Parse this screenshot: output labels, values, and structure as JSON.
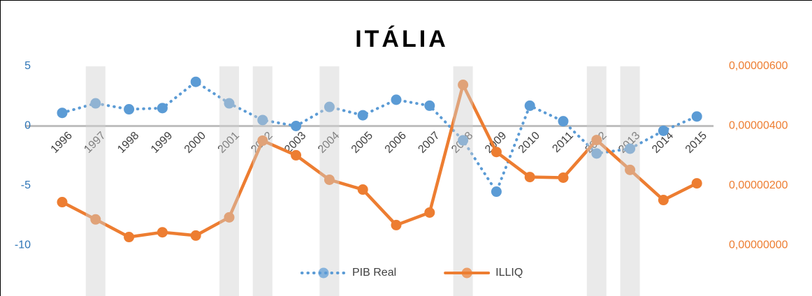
{
  "chart_data": {
    "type": "line",
    "title": "ITÁLIA",
    "categories": [
      "1996",
      "1997",
      "1998",
      "1999",
      "2000",
      "2001",
      "2002",
      "2003",
      "2004",
      "2005",
      "2006",
      "2007",
      "2008",
      "2009",
      "2010",
      "2011",
      "2012",
      "2013",
      "2014",
      "2015"
    ],
    "series": [
      {
        "name": "PIB Real",
        "color": "#5b9bd5",
        "dashed": true,
        "values": [
          1.1,
          1.9,
          1.4,
          1.5,
          3.7,
          1.9,
          0.5,
          0.0,
          1.6,
          0.9,
          2.2,
          1.7,
          -1.2,
          -5.5,
          1.7,
          0.4,
          -2.3,
          -1.9,
          -0.4,
          0.8
        ]
      },
      {
        "name": "ILLIQ",
        "color": "#ed7d31",
        "axis": "y2",
        "dashed": false,
        "values": [
          1.45e-06,
          8.7e-07,
          2.8e-07,
          4.4e-07,
          3.3e-07,
          9.4e-07,
          3.51e-06,
          3.02e-06,
          2.2e-06,
          1.87e-06,
          6.8e-07,
          1.1e-06,
          5.38e-06,
          3.13e-06,
          2.29e-06,
          2.27e-06,
          3.53e-06,
          2.53e-06,
          1.52e-06,
          2.08e-06
        ]
      }
    ],
    "highlight_categories": [
      "1997",
      "2001",
      "2002",
      "2004",
      "2008",
      "2012",
      "2013"
    ],
    "ylim": [
      -14,
      5
    ],
    "yticks": [
      -10,
      -5,
      0,
      5
    ],
    "y2lim": [
      -1.6e-06,
      6e-06
    ],
    "y2ticks": [
      {
        "value": 0,
        "label": "0,00000000"
      },
      {
        "value": 2e-06,
        "label": "0,00000200"
      },
      {
        "value": 4e-06,
        "label": "0,00000400"
      },
      {
        "value": 6e-06,
        "label": "0,00000600"
      }
    ],
    "legend": "bottom"
  }
}
